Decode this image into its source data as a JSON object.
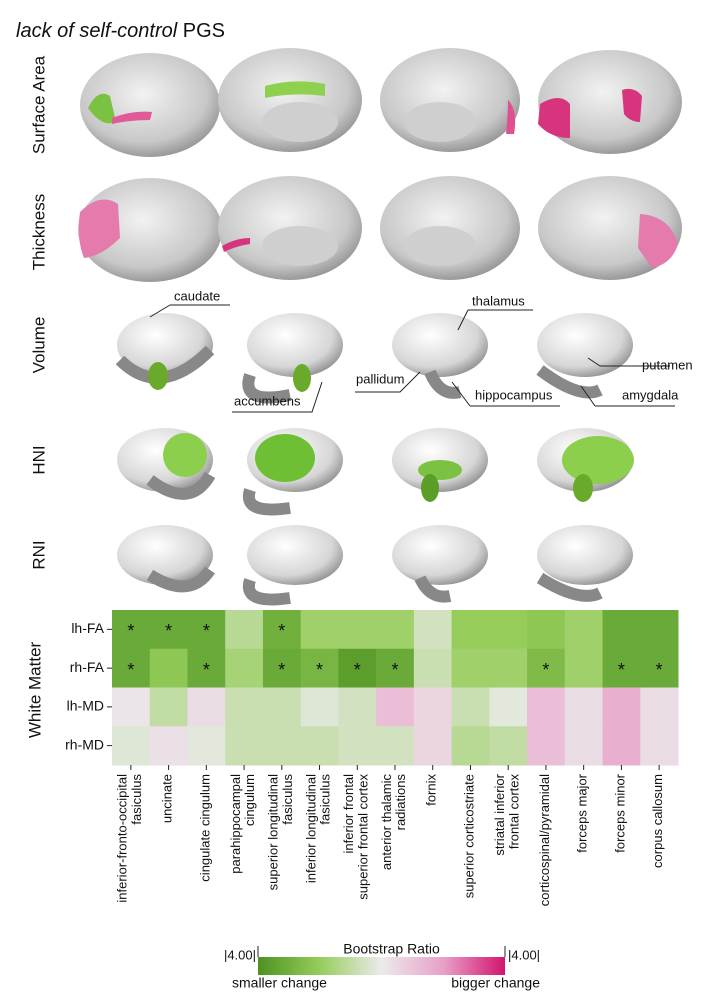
{
  "figure": {
    "title_italic": "lack of self-control",
    "title_rest": "PGS",
    "row_labels": [
      "Surface Area",
      "Thickness",
      "Volume",
      "HNI",
      "RNI",
      "White Matter"
    ],
    "structure_labels": [
      "caudate",
      "thalamus",
      "putamen",
      "pallidum",
      "hippocampus",
      "amygdala",
      "accumbens"
    ]
  },
  "heatmap": {
    "rows": [
      "lh-FA",
      "rh-FA",
      "lh-MD",
      "rh-MD"
    ],
    "columns": [
      [
        "inferior-fronto-occipital",
        "fasiculus"
      ],
      [
        "uncinate"
      ],
      [
        "cingulate cingulum"
      ],
      [
        "parahippocampal",
        "cingulum"
      ],
      [
        "superior longitudinal",
        "fasiculus"
      ],
      [
        "inferior longitudinal",
        "fasiculus"
      ],
      [
        "inferior frontal",
        "superior frontal cortex"
      ],
      [
        "anterior thalamic",
        "radiations"
      ],
      [
        "fornix"
      ],
      [
        "superior corticostriate"
      ],
      [
        "striatal inferior",
        "frontal cortex"
      ],
      [
        "corticospinal/pyramidal"
      ],
      [
        "forceps major"
      ],
      [
        "forceps minor"
      ],
      [
        "corpus callosum"
      ]
    ],
    "values": [
      [
        -3.2,
        -3.2,
        -3.2,
        -1.2,
        -3.0,
        -1.8,
        -1.8,
        -1.8,
        -0.6,
        -2.0,
        -2.0,
        -2.2,
        -1.8,
        -3.2,
        -3.2
      ],
      [
        -3.2,
        -2.2,
        -3.2,
        -1.6,
        -3.2,
        -2.8,
        -3.6,
        -3.2,
        -0.8,
        -1.8,
        -1.8,
        -2.6,
        -1.8,
        -3.2,
        -3.2
      ],
      [
        0.2,
        -1.0,
        0.4,
        -0.8,
        -0.8,
        -0.3,
        -0.6,
        1.2,
        0.6,
        -0.8,
        -0.2,
        1.2,
        0.4,
        1.6,
        0.4
      ],
      [
        -0.3,
        0.3,
        -0.2,
        -0.8,
        -0.8,
        -0.8,
        -0.6,
        -0.6,
        0.6,
        -1.2,
        -1.0,
        1.2,
        0.4,
        1.6,
        0.4
      ]
    ],
    "significant": [
      [
        true,
        true,
        true,
        false,
        true,
        false,
        false,
        false,
        false,
        false,
        false,
        false,
        false,
        false,
        false
      ],
      [
        true,
        false,
        true,
        false,
        true,
        true,
        true,
        true,
        false,
        false,
        false,
        true,
        false,
        true,
        true
      ],
      [
        false,
        false,
        false,
        false,
        false,
        false,
        false,
        false,
        false,
        false,
        false,
        false,
        false,
        false,
        false
      ],
      [
        false,
        false,
        false,
        false,
        false,
        false,
        false,
        false,
        false,
        false,
        false,
        false,
        false,
        false,
        false
      ]
    ],
    "star_symbol": "*"
  },
  "colorbar": {
    "title": "Bootstrap Ratio",
    "min": {
      "value": -4,
      "label": "|4.00|"
    },
    "max": {
      "value": 4,
      "label": "|4.00|"
    },
    "low_label": "smaller change",
    "high_label": "bigger change"
  }
}
